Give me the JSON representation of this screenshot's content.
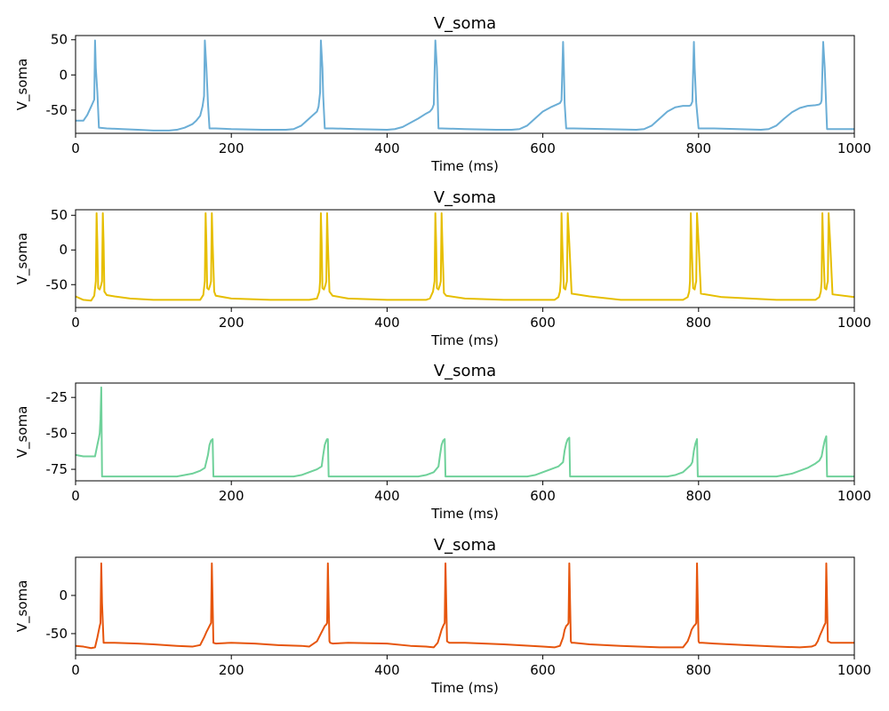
{
  "chart_data": [
    {
      "type": "line",
      "title": "V_soma",
      "xlabel": "Time (ms)",
      "ylabel": "V_soma",
      "xlim": [
        0,
        1000
      ],
      "ylim": [
        -83,
        56
      ],
      "xticks": [
        0,
        200,
        400,
        600,
        800,
        1000
      ],
      "yticks": [
        -50,
        0,
        50
      ],
      "grid": false,
      "color": "#6baed6",
      "series": [
        {
          "x": [
            0,
            10,
            15,
            20,
            22,
            24,
            25,
            26,
            28,
            30,
            40,
            60,
            80,
            100,
            120,
            130,
            140,
            150,
            155,
            160,
            163,
            165,
            166,
            168,
            170,
            172,
            180,
            200,
            240,
            270,
            280,
            290,
            300,
            305,
            310,
            312,
            314,
            315,
            317,
            318,
            320,
            330,
            360,
            400,
            410,
            420,
            430,
            440,
            450,
            455,
            458,
            460,
            462,
            464,
            466,
            470,
            500,
            540,
            560,
            570,
            580,
            590,
            600,
            610,
            618,
            622,
            624,
            626,
            627,
            628,
            630,
            640,
            680,
            720,
            730,
            740,
            750,
            760,
            770,
            780,
            788,
            790,
            792,
            794,
            795,
            797,
            800,
            820,
            880,
            890,
            900,
            910,
            920,
            930,
            940,
            950,
            955,
            957,
            958,
            960,
            962,
            965,
            1000
          ],
          "y": [
            -65,
            -65,
            -57,
            -45,
            -40,
            -35,
            49,
            10,
            -25,
            -75,
            -76,
            -77,
            -78,
            -79,
            -79,
            -78,
            -75,
            -70,
            -65,
            -58,
            -45,
            -30,
            49,
            10,
            -40,
            -76,
            -76,
            -77,
            -78,
            -78,
            -77,
            -72,
            -62,
            -57,
            -52,
            -45,
            -25,
            49,
            10,
            -30,
            -76,
            -76,
            -77,
            -78,
            -77,
            -74,
            -68,
            -62,
            -55,
            -52,
            -48,
            -42,
            49,
            10,
            -76,
            -76,
            -77,
            -78,
            -78,
            -77,
            -72,
            -62,
            -52,
            -46,
            -42,
            -40,
            -36,
            47,
            10,
            -40,
            -76,
            -76,
            -77,
            -78,
            -77,
            -72,
            -62,
            -52,
            -46,
            -44,
            -44,
            -43,
            -38,
            47,
            10,
            -40,
            -76,
            -76,
            -78,
            -77,
            -72,
            -62,
            -53,
            -47,
            -44,
            -43,
            -42,
            -40,
            -36,
            47,
            10,
            -77,
            -77
          ]
        }
      ]
    },
    {
      "type": "line",
      "title": "V_soma",
      "xlabel": "Time (ms)",
      "ylabel": "V_soma",
      "xlim": [
        0,
        1000
      ],
      "ylim": [
        -83,
        58
      ],
      "xticks": [
        0,
        200,
        400,
        600,
        800,
        1000
      ],
      "yticks": [
        -50,
        0,
        50
      ],
      "grid": false,
      "color": "#e6be00",
      "series": [
        {
          "x": [
            0,
            10,
            20,
            24,
            26,
            27,
            28,
            29,
            31,
            33,
            34,
            35,
            36,
            37,
            40,
            50,
            70,
            100,
            150,
            160,
            164,
            166,
            167,
            168,
            169,
            171,
            173,
            174,
            175,
            176,
            178,
            180,
            200,
            250,
            300,
            310,
            313,
            314,
            315,
            316,
            317,
            319,
            321,
            322,
            323,
            324,
            326,
            330,
            350,
            400,
            450,
            455,
            459,
            461,
            462,
            463,
            464,
            466,
            468,
            469,
            470,
            471,
            473,
            476,
            500,
            550,
            600,
            615,
            620,
            622,
            623,
            624,
            625,
            627,
            629,
            630,
            631,
            632,
            634,
            637,
            660,
            700,
            760,
            780,
            786,
            788,
            789,
            790,
            791,
            793,
            795,
            796,
            797,
            798,
            800,
            803,
            830,
            900,
            950,
            955,
            957,
            958,
            959,
            960,
            962,
            964,
            965,
            966,
            967,
            969,
            972,
            1000
          ],
          "y": [
            -67,
            -72,
            -73,
            -66,
            -45,
            53,
            10,
            -55,
            -57,
            -50,
            -45,
            53,
            10,
            -60,
            -65,
            -67,
            -70,
            -72,
            -72,
            -72,
            -65,
            -45,
            53,
            10,
            -55,
            -57,
            -50,
            -45,
            53,
            10,
            -60,
            -66,
            -70,
            -72,
            -72,
            -70,
            -60,
            -45,
            53,
            10,
            -55,
            -57,
            -50,
            -45,
            53,
            10,
            -60,
            -66,
            -70,
            -72,
            -72,
            -70,
            -60,
            -45,
            53,
            10,
            -55,
            -57,
            -50,
            -45,
            53,
            10,
            -62,
            -66,
            -70,
            -72,
            -72,
            -72,
            -68,
            -60,
            -45,
            53,
            10,
            -55,
            -57,
            -50,
            -45,
            53,
            10,
            -63,
            -67,
            -72,
            -72,
            -72,
            -68,
            -60,
            -45,
            53,
            10,
            -55,
            -57,
            -50,
            -45,
            53,
            10,
            -63,
            -68,
            -72,
            -72,
            -68,
            -60,
            -45,
            53,
            10,
            -55,
            -57,
            -50,
            -45,
            53,
            10,
            -64,
            -68
          ]
        }
      ]
    },
    {
      "type": "line",
      "title": "V_soma",
      "xlabel": "Time (ms)",
      "ylabel": "V_soma",
      "xlim": [
        0,
        1000
      ],
      "ylim": [
        -83,
        -15
      ],
      "xticks": [
        0,
        200,
        400,
        600,
        800,
        1000
      ],
      "yticks": [
        -75,
        -50,
        -25
      ],
      "grid": false,
      "color": "#6fd19a",
      "series": [
        {
          "x": [
            0,
            10,
            20,
            25,
            28,
            30,
            31,
            32,
            33,
            34,
            40,
            100,
            130,
            140,
            150,
            160,
            166,
            170,
            172,
            174,
            176,
            177,
            200,
            260,
            280,
            290,
            300,
            310,
            316,
            318,
            320,
            322,
            323,
            324,
            325,
            340,
            420,
            440,
            450,
            460,
            466,
            468,
            470,
            472,
            474,
            475,
            490,
            560,
            580,
            590,
            600,
            610,
            620,
            626,
            628,
            630,
            632,
            634,
            635,
            650,
            740,
            760,
            770,
            780,
            786,
            790,
            792,
            794,
            796,
            798,
            799,
            820,
            880,
            900,
            910,
            920,
            930,
            940,
            950,
            955,
            958,
            960,
            962,
            964,
            965,
            980,
            1000
          ],
          "y": [
            -65,
            -66,
            -66,
            -66,
            -58,
            -53,
            -50,
            -40,
            -18,
            -80,
            -80,
            -80,
            -80,
            -79,
            -78,
            -76,
            -74,
            -65,
            -58,
            -55,
            -54,
            -80,
            -80,
            -80,
            -80,
            -79,
            -77,
            -75,
            -73,
            -65,
            -58,
            -55,
            -54,
            -54,
            -80,
            -80,
            -80,
            -80,
            -79,
            -77,
            -73,
            -65,
            -58,
            -55,
            -54,
            -80,
            -80,
            -80,
            -80,
            -79,
            -77,
            -75,
            -73,
            -70,
            -62,
            -57,
            -54,
            -53,
            -80,
            -80,
            -80,
            -80,
            -79,
            -77,
            -74,
            -72,
            -70,
            -62,
            -57,
            -54,
            -80,
            -80,
            -80,
            -80,
            -79,
            -78,
            -76,
            -74,
            -71,
            -69,
            -66,
            -60,
            -55,
            -52,
            -80,
            -80,
            -80
          ]
        }
      ]
    },
    {
      "type": "line",
      "title": "V_soma",
      "xlabel": "Time (ms)",
      "ylabel": "V_soma",
      "xlim": [
        0,
        1000
      ],
      "ylim": [
        -78,
        50
      ],
      "xticks": [
        0,
        200,
        400,
        600,
        800,
        1000
      ],
      "yticks": [
        -50,
        0
      ],
      "grid": false,
      "color": "#e6550d",
      "series": [
        {
          "x": [
            0,
            10,
            20,
            25,
            28,
            30,
            31,
            32,
            33,
            34,
            36,
            50,
            80,
            100,
            130,
            150,
            160,
            165,
            168,
            170,
            172,
            173,
            174,
            175,
            176,
            177,
            180,
            200,
            230,
            260,
            290,
            300,
            310,
            315,
            318,
            320,
            322,
            323,
            324,
            325,
            326,
            327,
            330,
            350,
            400,
            430,
            450,
            460,
            465,
            468,
            470,
            472,
            473,
            474,
            475,
            476,
            477,
            480,
            500,
            550,
            600,
            615,
            622,
            626,
            628,
            630,
            632,
            633,
            634,
            635,
            636,
            637,
            640,
            660,
            700,
            750,
            780,
            786,
            789,
            791,
            794,
            796,
            797,
            798,
            799,
            800,
            801,
            805,
            820,
            860,
            900,
            930,
            945,
            950,
            953,
            956,
            959,
            961,
            962,
            963,
            964,
            965,
            966,
            970,
            1000
          ],
          "y": [
            -66,
            -67,
            -69,
            -68,
            -55,
            -45,
            -40,
            -36,
            42,
            -10,
            -62,
            -62,
            -63,
            -64,
            -66,
            -67,
            -65,
            -55,
            -48,
            -44,
            -40,
            -38,
            -36,
            42,
            -10,
            -62,
            -63,
            -62,
            -63,
            -65,
            -66,
            -67,
            -60,
            -50,
            -44,
            -40,
            -38,
            -36,
            42,
            -10,
            -60,
            -62,
            -63,
            -62,
            -63,
            -66,
            -67,
            -68,
            -62,
            -52,
            -45,
            -40,
            -38,
            -36,
            42,
            -10,
            -60,
            -62,
            -62,
            -64,
            -67,
            -68,
            -66,
            -55,
            -45,
            -40,
            -38,
            -36,
            42,
            -10,
            -60,
            -62,
            -62,
            -64,
            -66,
            -68,
            -68,
            -60,
            -52,
            -45,
            -40,
            -38,
            -36,
            42,
            -10,
            -60,
            -62,
            -62,
            -63,
            -65,
            -67,
            -68,
            -67,
            -65,
            -60,
            -52,
            -45,
            -40,
            -38,
            -36,
            42,
            -10,
            -60,
            -62,
            -62
          ]
        }
      ]
    }
  ]
}
